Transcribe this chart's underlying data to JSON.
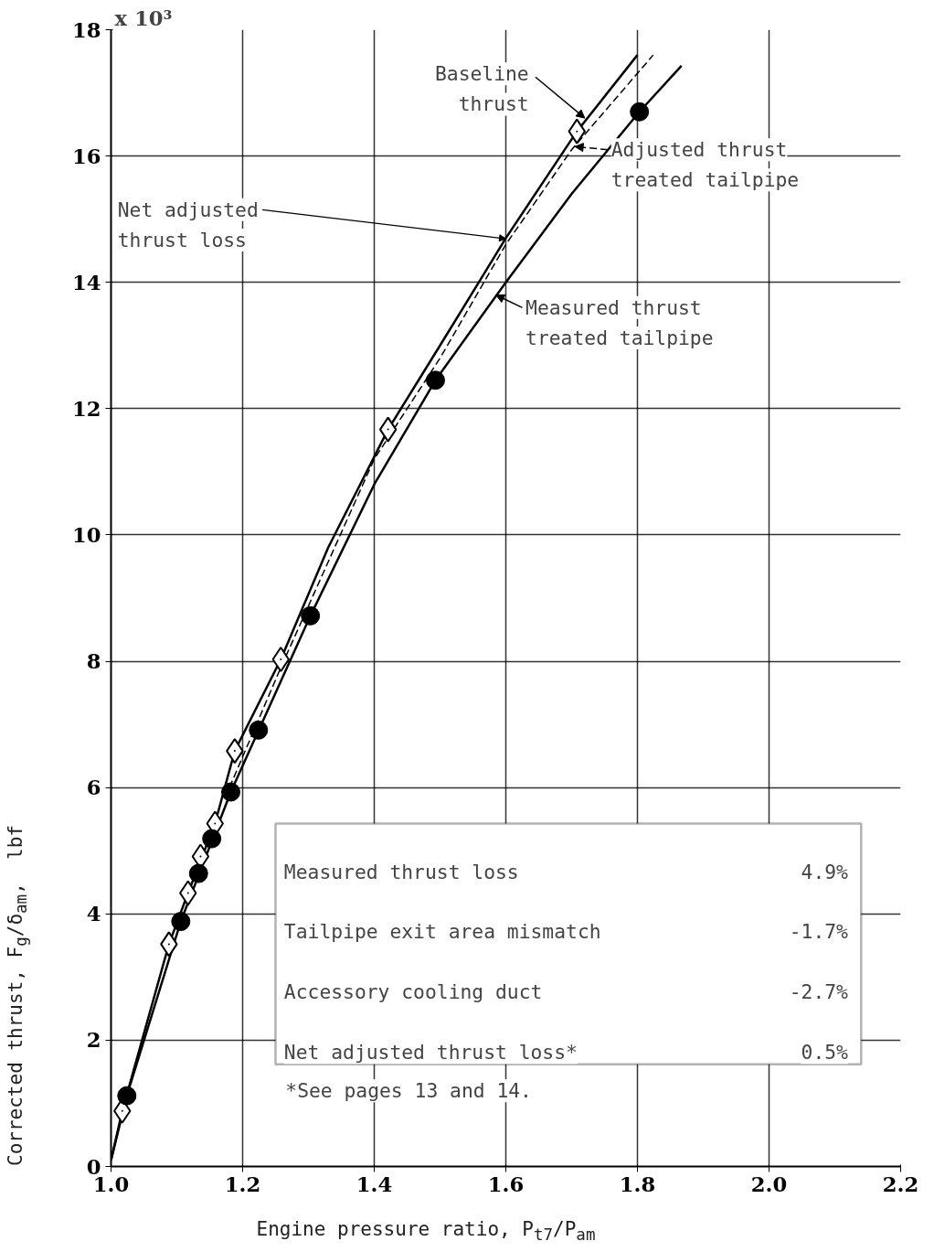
{
  "chart_data": {
    "type": "line",
    "xlabel": "Engine pressure ratio, P$_{t7}$/P$_{am}$",
    "ylabel": "Corrected thrust, F$_{g}$/δ$_{am}$,   lbf",
    "xlim": [
      1.0,
      2.2
    ],
    "ylim": [
      0,
      18
    ],
    "xticks": [
      {
        "value": 1.0,
        "label": "1.0"
      },
      1.2,
      1.4,
      1.6,
      1.8,
      {
        "value": 2.0,
        "label": "2.0"
      },
      2.2
    ],
    "yticks": [
      0,
      2,
      4,
      6,
      8,
      10,
      12,
      14,
      16,
      18
    ],
    "grid": true,
    "legend": "top right",
    "series": [
      {
        "name": "Baseline thrust",
        "line_style": "solid",
        "color": "#000000",
        "x": [
          1.0,
          1.017,
          1.088,
          1.117,
          1.158,
          1.188,
          1.258,
          1.33,
          1.421,
          1.5,
          1.6,
          1.708,
          1.8
        ],
        "values": [
          0.1,
          0.88,
          3.52,
          4.33,
          5.43,
          6.58,
          8.03,
          9.8,
          11.67,
          13.0,
          14.7,
          16.39,
          17.6
        ]
      },
      {
        "name": "Adjusted thrust treated tailpipe",
        "line_style": "dashed",
        "color": "#000000",
        "x": [
          1.18,
          1.258,
          1.4,
          1.5,
          1.6,
          1.7,
          1.824
        ],
        "values": [
          6.0,
          7.9,
          11.2,
          12.8,
          14.6,
          16.1,
          17.6
        ]
      },
      {
        "name": "Measured thrust treated tailpipe",
        "line_style": "solid",
        "color": "#000000",
        "x": [
          1.0,
          1.024,
          1.106,
          1.182,
          1.303,
          1.4,
          1.493,
          1.6,
          1.7,
          1.803,
          1.867
        ],
        "values": [
          0.1,
          1.12,
          3.88,
          5.93,
          8.72,
          10.8,
          12.45,
          14.0,
          15.4,
          16.7,
          17.43
        ]
      },
      {
        "type": "scatter",
        "marker": "diamond",
        "color": "#000000",
        "x": [
          1.017,
          1.088,
          1.117,
          1.136,
          1.158,
          1.188,
          1.258,
          1.421,
          1.708
        ],
        "values": [
          0.88,
          3.52,
          4.33,
          4.91,
          5.43,
          6.58,
          8.03,
          11.67,
          16.39
        ]
      },
      {
        "type": "scatter",
        "marker": "circle",
        "color": "#000000",
        "x": [
          1.024,
          1.106,
          1.133,
          1.153,
          1.182,
          1.224,
          1.303,
          1.493,
          1.803
        ],
        "values": [
          1.12,
          3.88,
          4.64,
          5.19,
          5.93,
          6.91,
          8.72,
          12.45,
          16.7
        ]
      }
    ],
    "annotations": [
      {
        "text": "Net adjusted\nthrust loss",
        "x": 1.6,
        "y": 14.65
      },
      "x 10³",
      "Measured thrust loss",
      "4.9%",
      "Tailpipe exit area mismatch",
      "-1.7%",
      "Accessory cooling duct",
      "-2.7%",
      "Net adjusted thrust loss*",
      "0.5%",
      "*See pages 13 and 14."
    ]
  }
}
